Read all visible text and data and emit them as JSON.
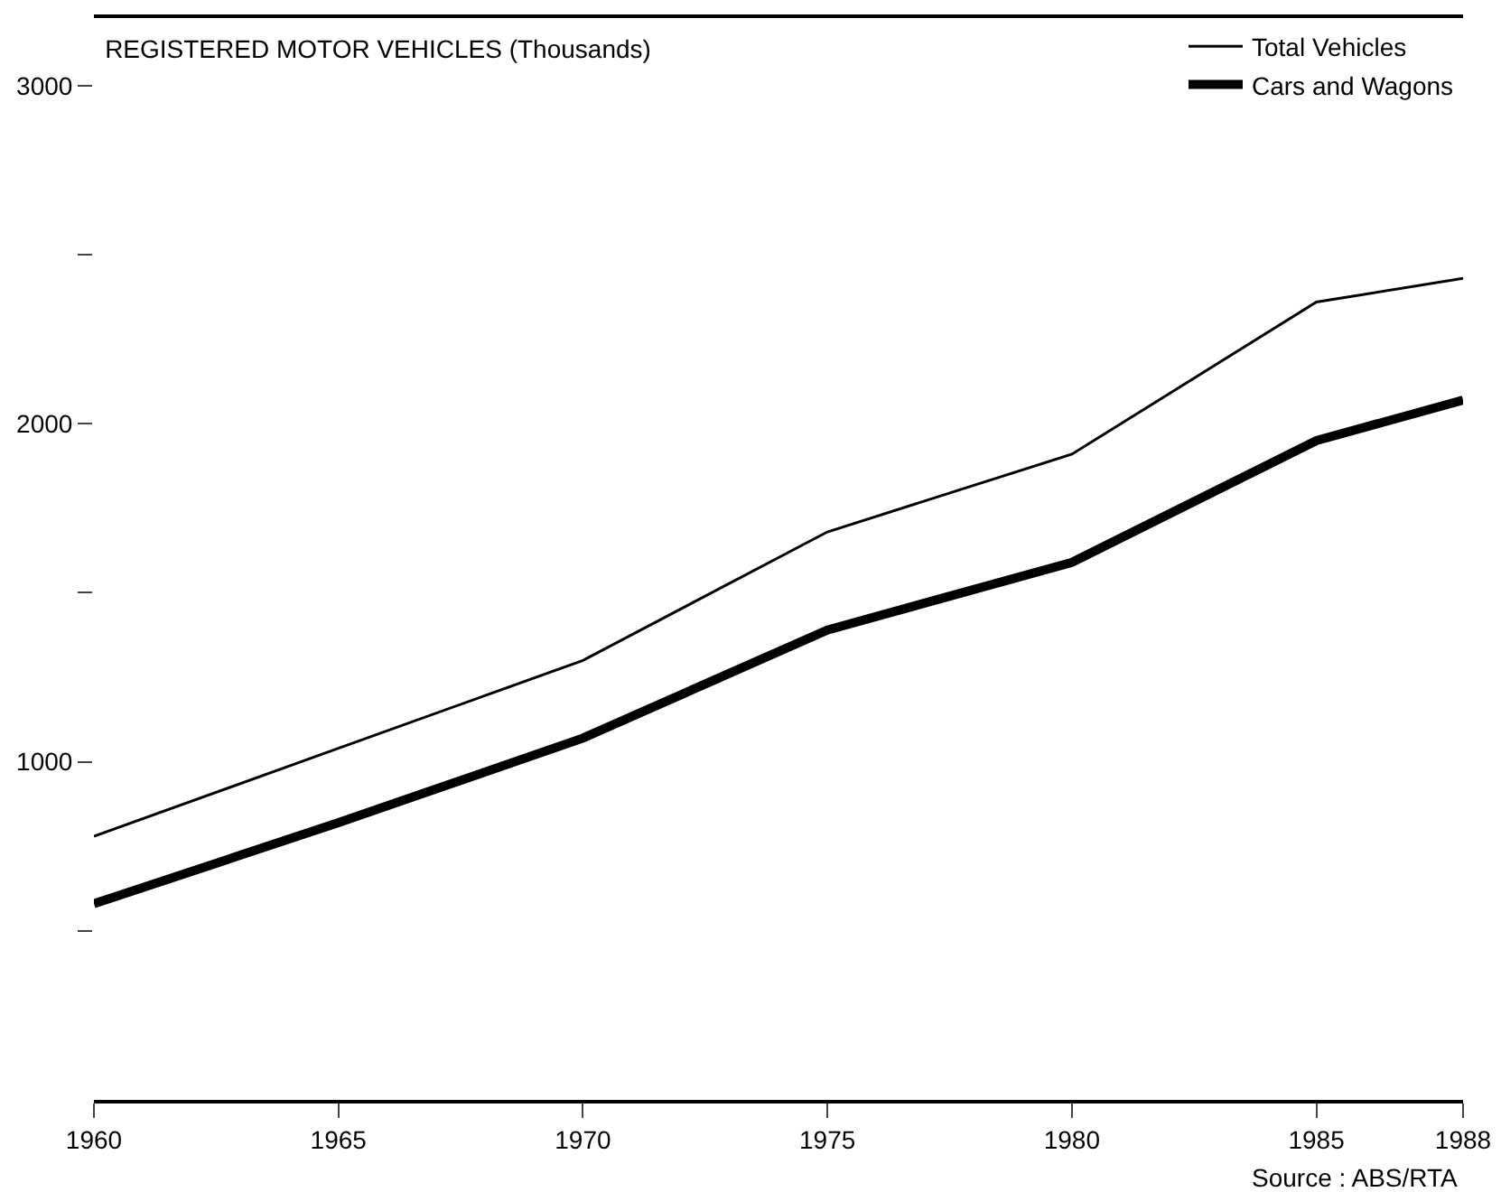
{
  "chart_data": {
    "type": "line",
    "title": "REGISTERED MOTOR VEHICLES (Thousands)",
    "x": [
      1960,
      1965,
      1970,
      1975,
      1980,
      1985,
      1988
    ],
    "series": [
      {
        "name": "Total Vehicles",
        "color": "#000000",
        "values": [
          780,
          1040,
          1300,
          1680,
          1910,
          2360,
          2430
        ]
      },
      {
        "name": "Cars and Wagons",
        "color": "#000000",
        "values": [
          580,
          820,
          1070,
          1390,
          1590,
          1950,
          2070
        ]
      }
    ],
    "xlim": [
      1960,
      1988
    ],
    "xticks": [
      1960,
      1965,
      1970,
      1975,
      1980,
      1985,
      1988
    ],
    "ylim": [
      0,
      3200
    ],
    "yticks": [
      {
        "value": 500,
        "label": null
      },
      1000,
      {
        "value": 1500,
        "label": null
      },
      2000,
      {
        "value": 2500,
        "label": null
      },
      3000
    ],
    "grid": false,
    "legend": "top right",
    "marker": "none",
    "line_style": "solid",
    "annotations": [
      "Source : ABS/RTA"
    ]
  }
}
